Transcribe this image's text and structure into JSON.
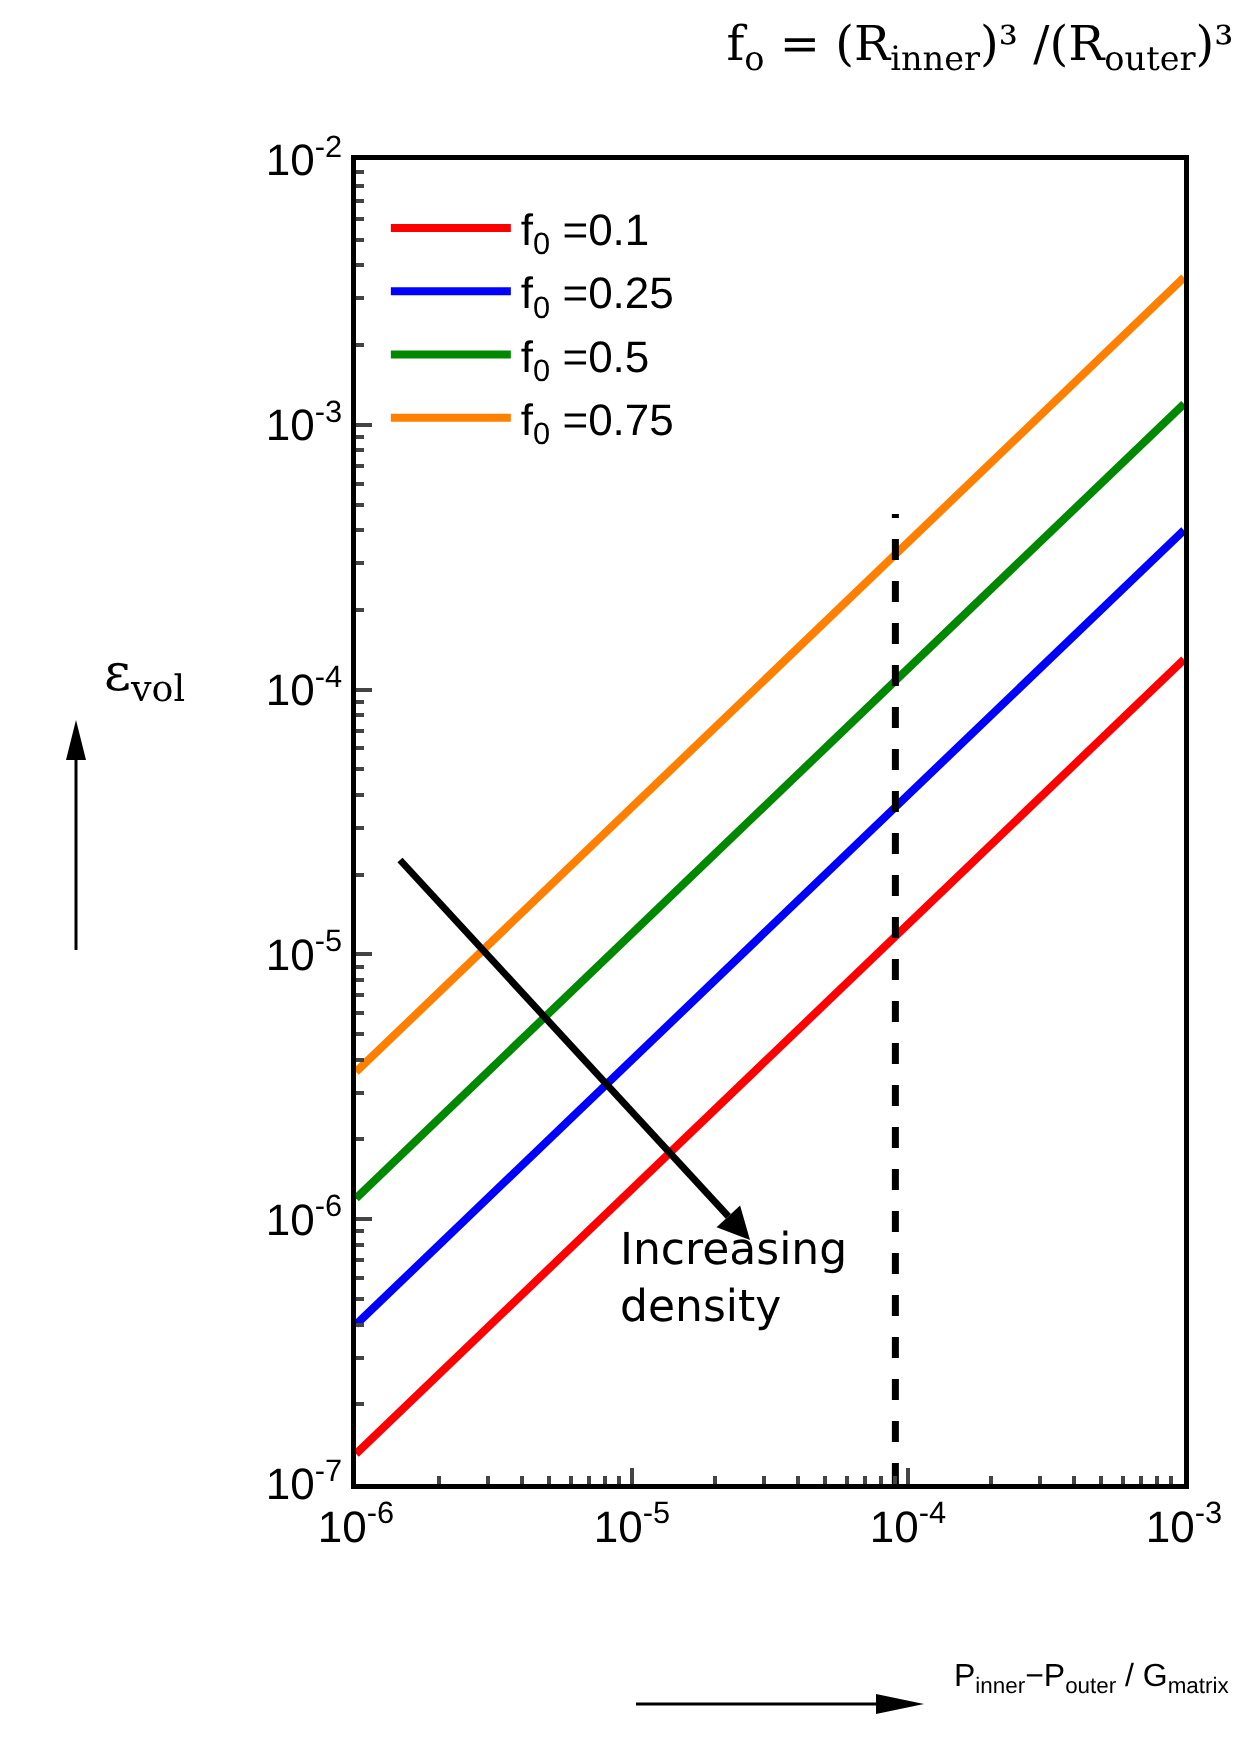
{
  "chart_data": {
    "type": "line",
    "title": "f$_{o}$ = (R$_{inner}$)³ /(R$_{outer}$)³",
    "xlabel": "P$_{inner}$−P$_{outer}$ / G$_{matrix}$",
    "ylabel": "ε$_{vol}$",
    "x": [
      1e-06,
      0.001
    ],
    "series": [
      {
        "name": "f$_{0}$ =0.1",
        "color": "#ff0000",
        "values": [
          1.3e-07,
          0.00013
        ]
      },
      {
        "name": "f$_{0}$ =0.25",
        "color": "#0000ff",
        "values": [
          4e-07,
          0.0004
        ]
      },
      {
        "name": "f$_{0}$ =0.5",
        "color": "#008800",
        "values": [
          1.2e-06,
          0.0012
        ]
      },
      {
        "name": "f$_{0}$ =0.75",
        "color": "#ff8000",
        "values": [
          3.6e-06,
          0.0036
        ]
      },
      {
        "color": "#000000",
        "line_style": "dashed",
        "x": [
          9e-05,
          9e-05
        ],
        "values": [
          1e-07,
          0.00046
        ]
      }
    ],
    "annotations": [
      "Increasing density"
    ],
    "log": "xy",
    "legend": "top left",
    "grid": false,
    "marker": "none",
    "line_style": "solid",
    "xlim": [
      1e-06,
      0.001
    ],
    "ylim": [
      1e-07,
      0.01
    ],
    "xticks": [
      {
        "value": 1e-06,
        "label": "10$^{-6}$"
      },
      {
        "value": 1e-05,
        "label": "10$^{-5}$"
      },
      {
        "value": 0.0001,
        "label": "10$^{-4}$"
      },
      {
        "value": 0.001,
        "label": "10$^{-3}$"
      }
    ],
    "yticks": [
      {
        "value": 1e-07,
        "label": "10$^{-7}$"
      },
      {
        "value": 1e-06,
        "label": "10$^{-6}$"
      },
      {
        "value": 1e-05,
        "label": "10$^{-5}$"
      },
      {
        "value": 0.0001,
        "label": "10$^{-4}$"
      },
      {
        "value": 0.001,
        "label": "10$^{-3}$"
      },
      {
        "value": 0.01,
        "label": "10$^{-2}$"
      }
    ]
  }
}
